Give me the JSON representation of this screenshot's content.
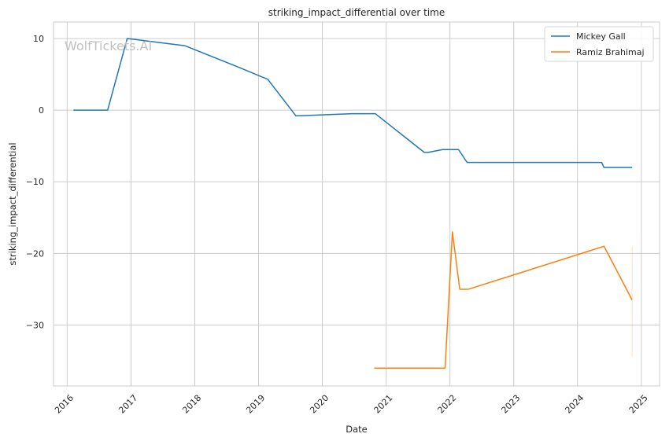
{
  "chart_data": {
    "type": "line",
    "title": "striking_impact_differential over time",
    "xlabel": "Date",
    "ylabel": "striking_impact_differential",
    "watermark": "WolfTickets.AI",
    "xlim": [
      "2015-10-15",
      "2025-04-15"
    ],
    "ylim": [
      -38.5,
      12.3
    ],
    "x_ticks": [
      "2016-01-01",
      "2017-01-01",
      "2018-01-01",
      "2019-01-01",
      "2020-01-01",
      "2021-01-01",
      "2022-01-01",
      "2023-01-01",
      "2024-01-01",
      "2025-01-01"
    ],
    "x_tick_labels": [
      "2016",
      "2017",
      "2018",
      "2019",
      "2020",
      "2021",
      "2022",
      "2023",
      "2024",
      "2025"
    ],
    "y_ticks": [
      10,
      0,
      -10,
      -20,
      -30
    ],
    "y_tick_labels": [
      "10",
      "0",
      "−10",
      "−20",
      "−30"
    ],
    "grid": true,
    "legend_position": "top-right",
    "series": [
      {
        "name": "Mickey Gall",
        "color": "#1f77b4",
        "points": [
          [
            "2016-02-06",
            0.0
          ],
          [
            "2016-08-20",
            0.0
          ],
          [
            "2016-12-10",
            10.0
          ],
          [
            "2017-11-04",
            9.0
          ],
          [
            "2018-09-08",
            6.0
          ],
          [
            "2019-02-23",
            4.3
          ],
          [
            "2019-08-03",
            -0.8
          ],
          [
            "2020-06-20",
            -0.5
          ],
          [
            "2020-10-31",
            -0.5
          ],
          [
            "2021-08-07",
            -5.9
          ],
          [
            "2021-08-28",
            -5.9
          ],
          [
            "2021-11-20",
            -5.5
          ],
          [
            "2022-02-19",
            -5.5
          ],
          [
            "2022-04-09",
            -7.3
          ],
          [
            "2024-05-18",
            -7.3
          ],
          [
            "2024-06-01",
            -8.0
          ],
          [
            "2024-11-09",
            -8.0
          ]
        ]
      },
      {
        "name": "Ramiz Brahimaj",
        "color": "#ff7f0e",
        "points": [
          [
            "2020-10-24",
            -36.0
          ],
          [
            "2021-12-04",
            -36.0
          ],
          [
            "2022-01-15",
            -17.0
          ],
          [
            "2022-02-26",
            -25.0
          ],
          [
            "2022-04-16",
            -25.0
          ],
          [
            "2024-06-01",
            -19.0
          ],
          [
            "2024-11-09",
            -26.5
          ]
        ],
        "error_band": {
          "x": "2024-11-09",
          "low": -34.5,
          "high": -19.0
        }
      }
    ]
  }
}
